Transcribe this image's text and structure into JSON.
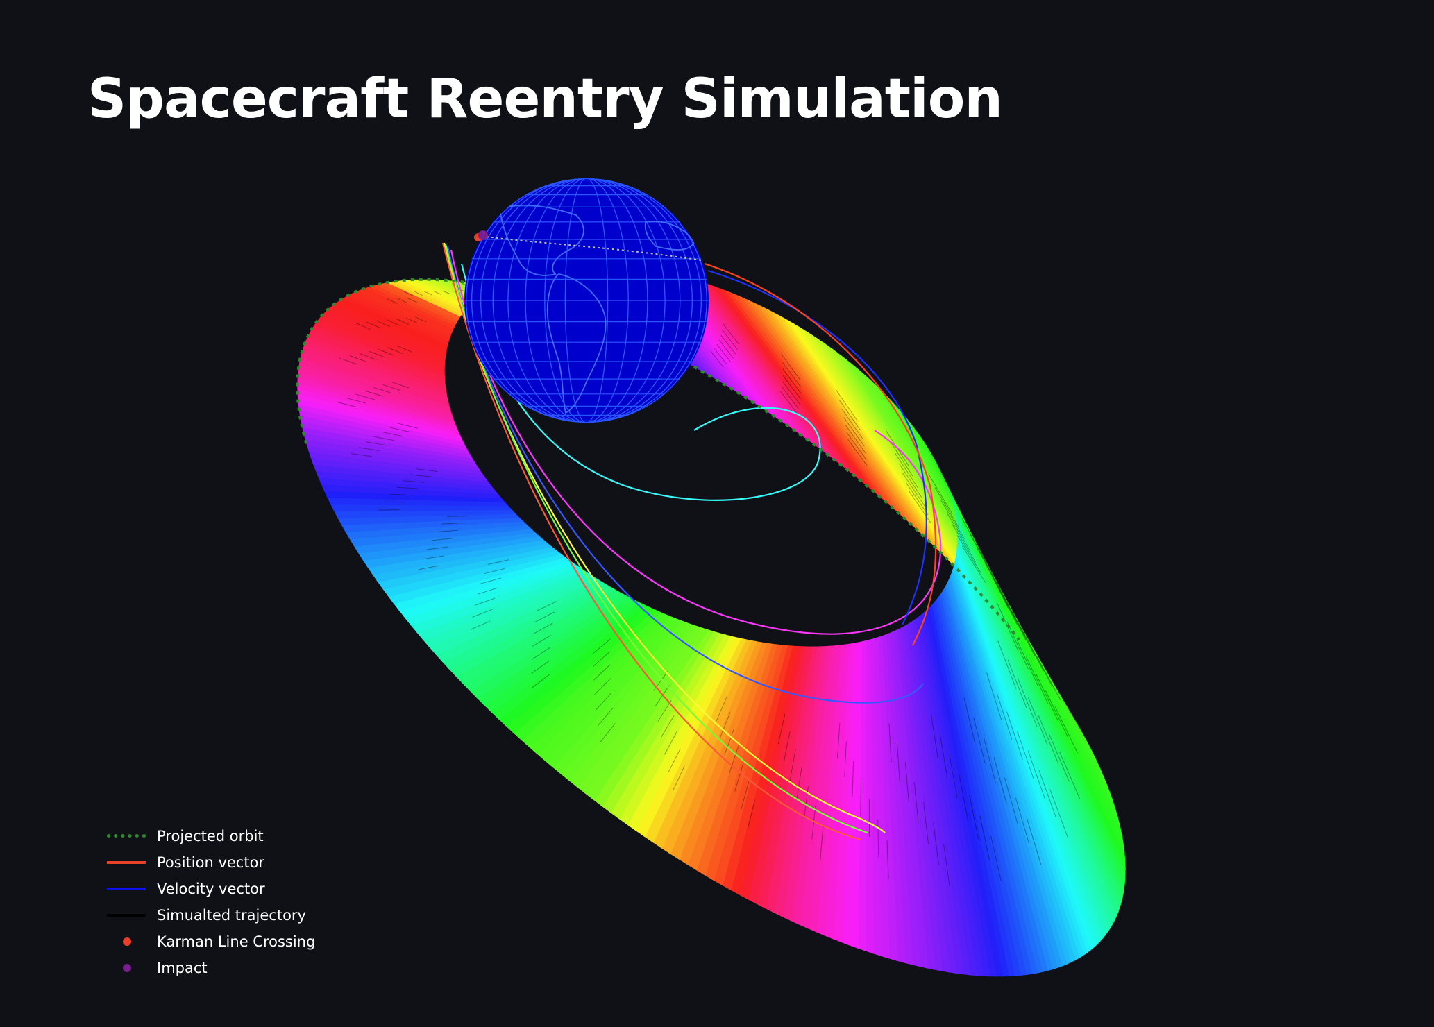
{
  "chart": {
    "title": "Spacecraft Reentry Simulation"
  },
  "legend": {
    "items": [
      {
        "label": "Projected orbit",
        "style": "dotted-line",
        "color": "#2f8a2f"
      },
      {
        "label": "Position vector",
        "style": "line",
        "color": "#e8402a"
      },
      {
        "label": "Velocity vector",
        "style": "line",
        "color": "#1010ee"
      },
      {
        "label": "Simualted trajectory",
        "style": "line",
        "color": "#000000"
      },
      {
        "label": "Karman Line Crossing",
        "style": "dot",
        "color": "#e8402a"
      },
      {
        "label": "Impact",
        "style": "dot",
        "color": "#7a1f8f"
      }
    ]
  },
  "chart_data": {
    "type": "line",
    "title": "Spacecraft Reentry Simulation",
    "series": [
      {
        "name": "Projected orbit",
        "color": "#2f8a2f",
        "style": "dotted"
      },
      {
        "name": "Position vector",
        "color": "#e8402a"
      },
      {
        "name": "Velocity vector",
        "color": "#1010ee"
      },
      {
        "name": "Simualted trajectory",
        "color": "#000000"
      },
      {
        "name": "Karman Line Crossing",
        "color": "#e8402a",
        "marker": "dot"
      },
      {
        "name": "Impact",
        "color": "#7a1f8f",
        "marker": "dot"
      }
    ],
    "background": "#000000",
    "earth_color": "#0000cc",
    "earth_gridline_color": "#2a55ff",
    "band_colormap": "hsv",
    "legend_position": "bottom-left",
    "grid": false
  }
}
